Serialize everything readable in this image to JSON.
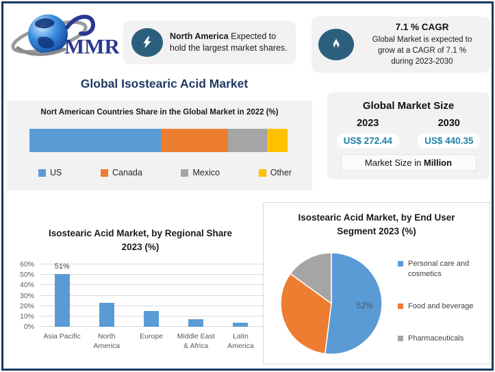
{
  "page": {
    "title": "Global Isostearic Acid Market"
  },
  "logo": {
    "brand": "MMR"
  },
  "banners": {
    "north_america": {
      "icon": "lightning-bolt",
      "highlight": "North America",
      "text": "Expected to hold the largest market shares."
    },
    "cagr": {
      "icon": "flame",
      "headline": "7.1 % CAGR",
      "lines": [
        "Global Market is expected to",
        "grow at a CAGR of 7.1 %",
        "during 2023-2030"
      ]
    }
  },
  "market_size": {
    "title": "Global Market Size",
    "columns": [
      {
        "year": "2023",
        "value": "US$ 272.44"
      },
      {
        "year": "2030",
        "value": "US$ 440.35"
      }
    ],
    "note_prefix": "Market Size in",
    "note_bold": "Million"
  },
  "colors": {
    "accent_blue": "#5B9BD5",
    "accent_orange": "#ED7D31",
    "accent_gray": "#A5A5A5",
    "accent_yellow": "#FFC000",
    "icon_circle_blue": "#2C5F7E",
    "title_navy": "#1F3864",
    "value_teal": "#1F7FA6",
    "frame_border": "#17375E"
  },
  "chart_data": [
    {
      "type": "bar",
      "subtype": "stacked-horizontal",
      "title": "Nort American Countries Share in the Global Market in 2022 (%)",
      "categories": [
        "US",
        "Canada",
        "Mexico",
        "Other"
      ],
      "values": [
        51,
        26,
        15,
        8
      ],
      "colors": [
        "#5B9BD5",
        "#ED7D31",
        "#A5A5A5",
        "#FFC000"
      ],
      "legend_position": "bottom"
    },
    {
      "type": "bar",
      "title_line1": "Isostearic Acid Market, by Regional Share",
      "title_line2": "2023 (%)",
      "categories": [
        "Asia Pacific",
        "North America",
        "Europe",
        "Middle East & Africa",
        "Latin America"
      ],
      "categories_lines": [
        [
          "Asia Pacific"
        ],
        [
          "North",
          "America"
        ],
        [
          "Europe"
        ],
        [
          "Middle East",
          "& Africa"
        ],
        [
          "Latin",
          "America"
        ]
      ],
      "values": [
        51,
        23,
        15,
        7,
        4
      ],
      "data_labels": [
        "51%",
        "",
        "",
        "",
        ""
      ],
      "y_ticks": [
        "60%",
        "50%",
        "40%",
        "30%",
        "20%",
        "10%",
        "0%"
      ],
      "ylim": [
        0,
        60
      ],
      "grid": true,
      "bar_color": "#5B9BD5"
    },
    {
      "type": "pie",
      "title_line1": "Isostearic Acid Market, by End User",
      "title_line2": "Segment 2023 (%)",
      "labels": [
        "Personal care and cosmetics",
        "Food and beverage",
        "Pharmaceuticals"
      ],
      "values": [
        52,
        33,
        15
      ],
      "data_labels": [
        "52%",
        "",
        ""
      ],
      "colors": [
        "#5B9BD5",
        "#ED7D31",
        "#A5A5A5"
      ],
      "legend_position": "right"
    }
  ]
}
